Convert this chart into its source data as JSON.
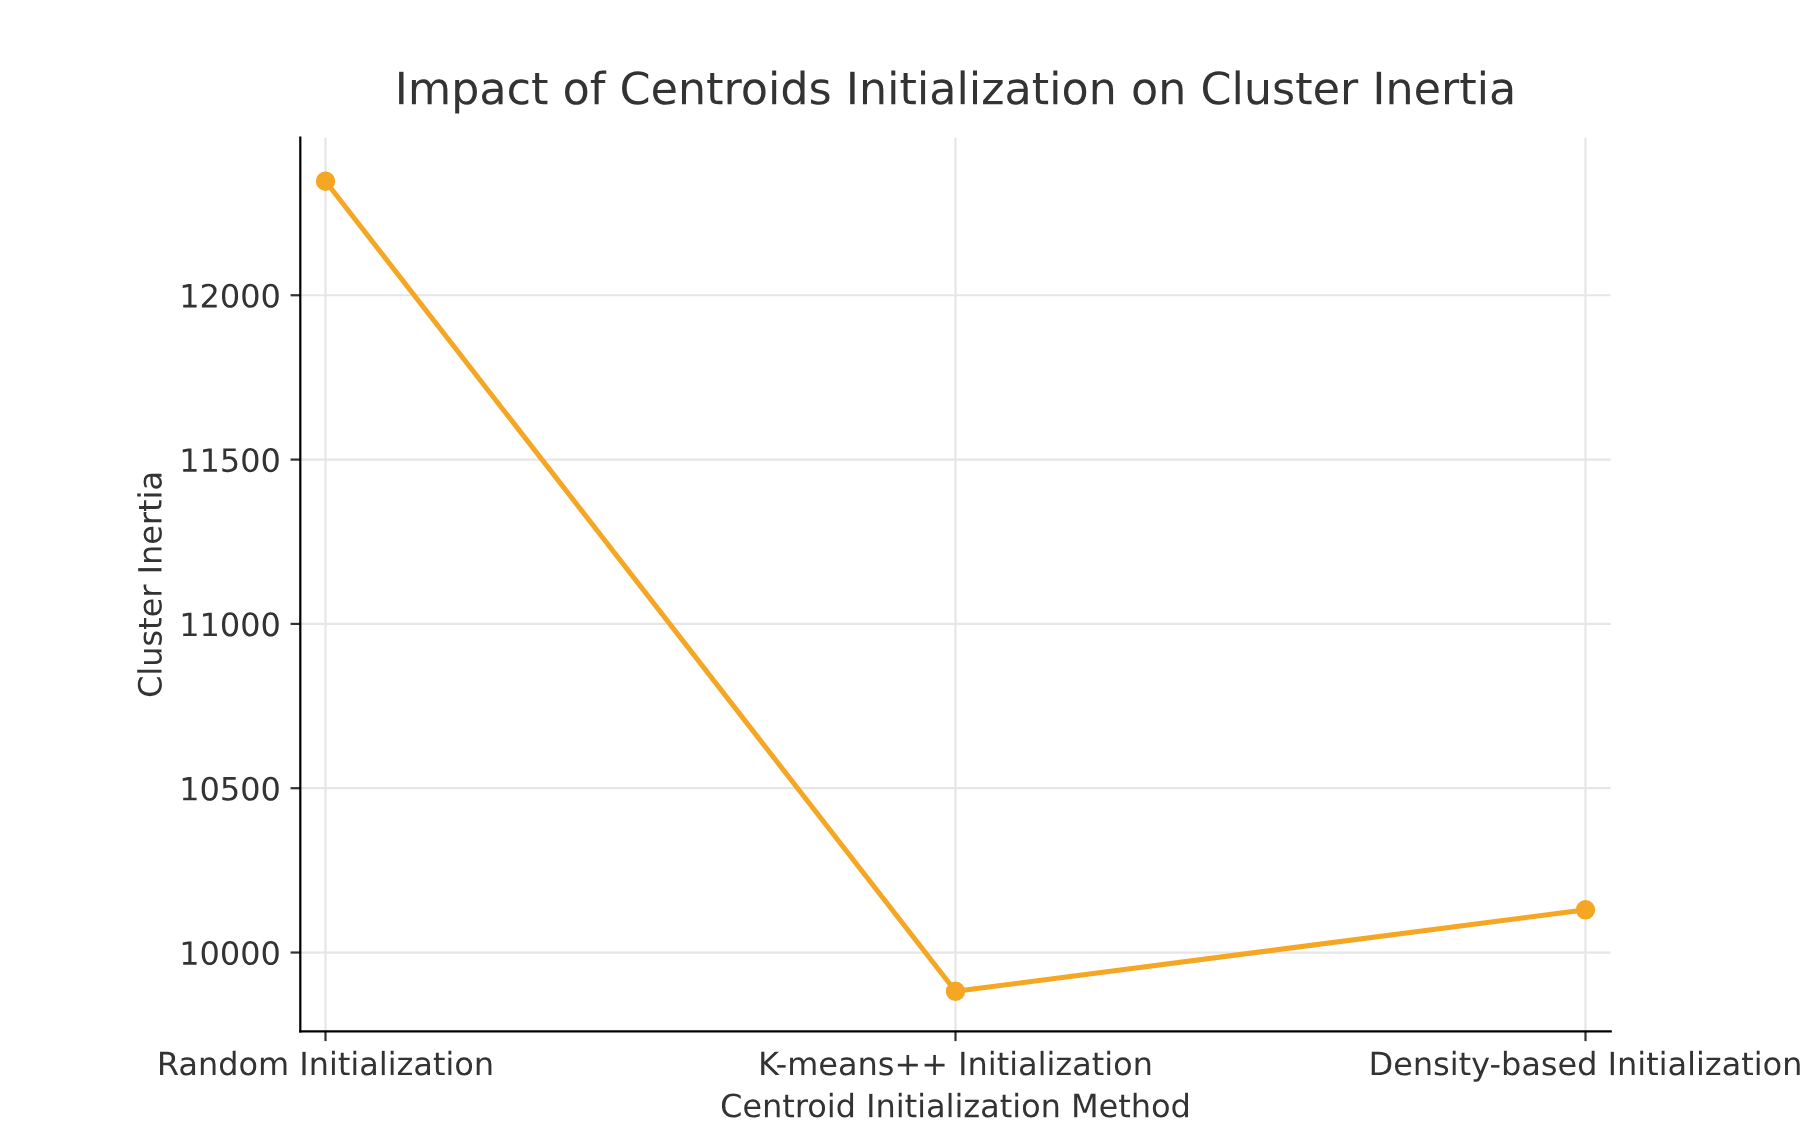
{
  "chart_data": {
    "type": "line",
    "title": "Impact of Centroids Initialization on Cluster Inertia",
    "xlabel": "Centroid Initialization Method",
    "ylabel": "Cluster Inertia",
    "categories": [
      "Random Initialization",
      "K-means++ Initialization",
      "Density-based Initialization"
    ],
    "series": [
      {
        "color": "#f5a623",
        "values": [
          12347,
          9882,
          10130
        ]
      }
    ],
    "ylim": [
      9760,
      12480
    ],
    "yticks": [
      10000,
      10500,
      11000,
      11500,
      12000
    ],
    "grid": true,
    "marker": "circle",
    "line_style": "solid"
  }
}
